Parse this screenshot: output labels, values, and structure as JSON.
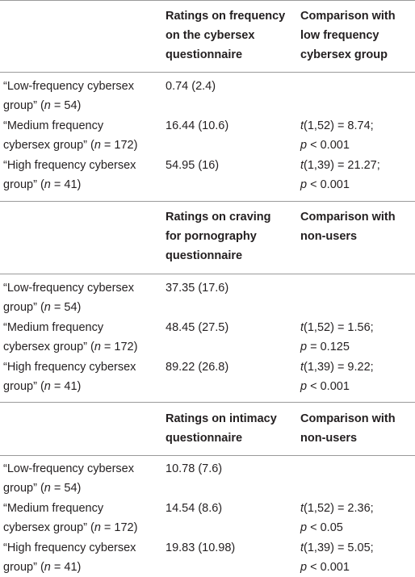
{
  "sections": [
    {
      "header": {
        "col2": [
          "Ratings on frequency",
          "on the cybersex",
          "questionnaire"
        ],
        "col3": [
          "Comparison with",
          "low frequency",
          "cybersex group"
        ]
      },
      "rows": [
        {
          "group": [
            "“Low-frequency cybersex",
            "group” (n = 54)"
          ],
          "rating": "0.74 (2.4)",
          "comparison": [
            "",
            ""
          ]
        },
        {
          "group": [
            "“Medium frequency",
            "cybersex group” (n = 172)"
          ],
          "rating": "16.44 (10.6)",
          "comparison": [
            "t(1,52) = 8.74;",
            "p < 0.001"
          ]
        },
        {
          "group": [
            "“High frequency cybersex",
            "group” (n = 41)"
          ],
          "rating": "54.95 (16)",
          "comparison": [
            "t(1,39) = 21.27;",
            "p < 0.001"
          ]
        }
      ]
    },
    {
      "header": {
        "col2": [
          "Ratings on craving",
          "for pornography",
          "questionnaire"
        ],
        "col3": [
          "Comparison with",
          "non-users",
          ""
        ]
      },
      "rows": [
        {
          "group": [
            "“Low-frequency cybersex",
            "group” (n = 54)"
          ],
          "rating": "37.35 (17.6)",
          "comparison": [
            "",
            ""
          ]
        },
        {
          "group": [
            "“Medium frequency",
            "cybersex group” (n = 172)"
          ],
          "rating": "48.45 (27.5)",
          "comparison": [
            "t(1,52) = 1.56;",
            "p = 0.125"
          ]
        },
        {
          "group": [
            "“High frequency cybersex",
            "group” (n = 41)"
          ],
          "rating": "89.22 (26.8)",
          "comparison": [
            "t(1,39) = 9.22;",
            "p < 0.001"
          ]
        }
      ]
    },
    {
      "header": {
        "col2": [
          "Ratings on intimacy",
          "questionnaire",
          ""
        ],
        "col3": [
          "Comparison with",
          "non-users",
          ""
        ]
      },
      "rows": [
        {
          "group": [
            "“Low-frequency cybersex",
            "group” (n = 54)"
          ],
          "rating": "10.78 (7.6)",
          "comparison": [
            "",
            ""
          ]
        },
        {
          "group": [
            "“Medium frequency",
            "cybersex group” (n = 172)"
          ],
          "rating": "14.54 (8.6)",
          "comparison": [
            "t(1,52) = 2.36;",
            "p < 0.05"
          ]
        },
        {
          "group": [
            "“High frequency cybersex",
            "group” (n = 41)"
          ],
          "rating": "19.83 (10.98)",
          "comparison": [
            "t(1,39) = 5.05;",
            "p < 0.001"
          ]
        }
      ]
    }
  ]
}
